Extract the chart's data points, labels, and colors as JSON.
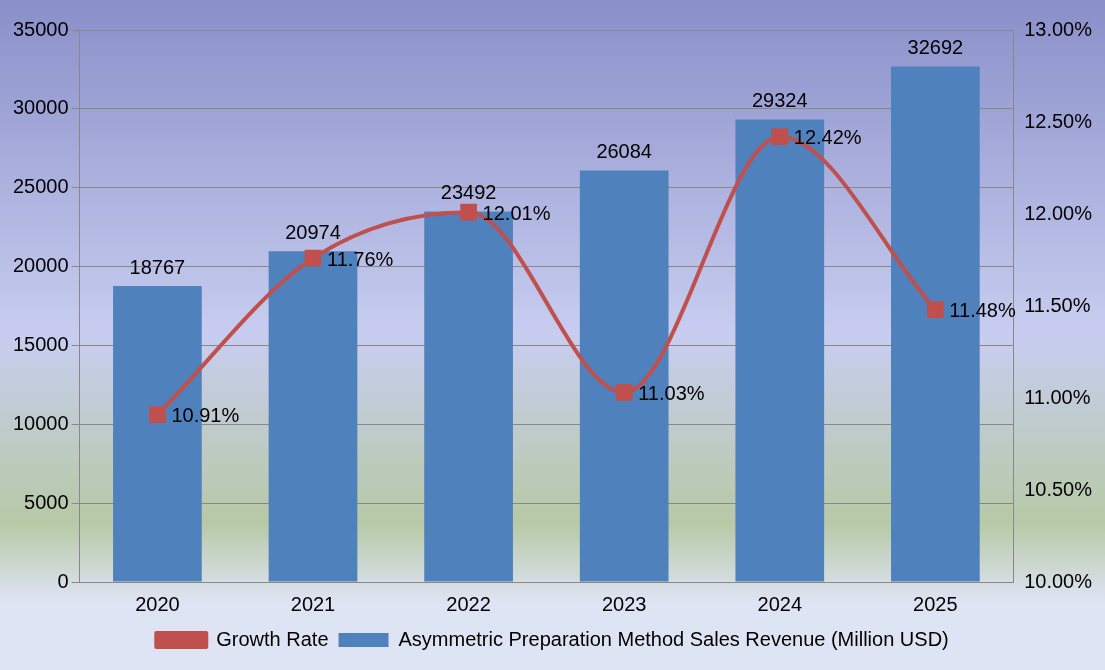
{
  "chart_data": {
    "type": "bar",
    "categories": [
      "2020",
      "2021",
      "2022",
      "2023",
      "2024",
      "2025"
    ],
    "series": [
      {
        "name": "Asymmetric Preparation Method Sales Revenue (Million USD)",
        "color": "#4f81bd",
        "values": [
          18767,
          20974,
          23492,
          26084,
          29324,
          32692
        ],
        "value_labels": [
          "18767",
          "20974",
          "23492",
          "26084",
          "29324",
          "32692"
        ]
      },
      {
        "name": "Growth Rate",
        "type": "line",
        "axis": "y2",
        "color": "#c0504d",
        "values": [
          10.91,
          11.76,
          12.01,
          11.03,
          12.42,
          11.48
        ],
        "value_labels": [
          "10.91%",
          "11.76%",
          "12.01%",
          "11.03%",
          "12.42%",
          "11.48%"
        ]
      }
    ],
    "ylim": [
      0,
      35000
    ],
    "yticks": [
      0,
      5000,
      10000,
      15000,
      20000,
      25000,
      30000,
      35000
    ],
    "y2lim": [
      10,
      13
    ],
    "y2ticks": [
      {
        "value": 10,
        "label": "10.00%"
      },
      {
        "value": 10.5,
        "label": "10.50%"
      },
      {
        "value": 11,
        "label": "11.00%"
      },
      {
        "value": 11.5,
        "label": "11.50%"
      },
      {
        "value": 12,
        "label": "12.00%"
      },
      {
        "value": 12.5,
        "label": "12.50%"
      },
      {
        "value": 13,
        "label": "13.00%"
      }
    ],
    "grid": "y",
    "legend": "bottom",
    "marker": "square",
    "line_style": "solid"
  }
}
